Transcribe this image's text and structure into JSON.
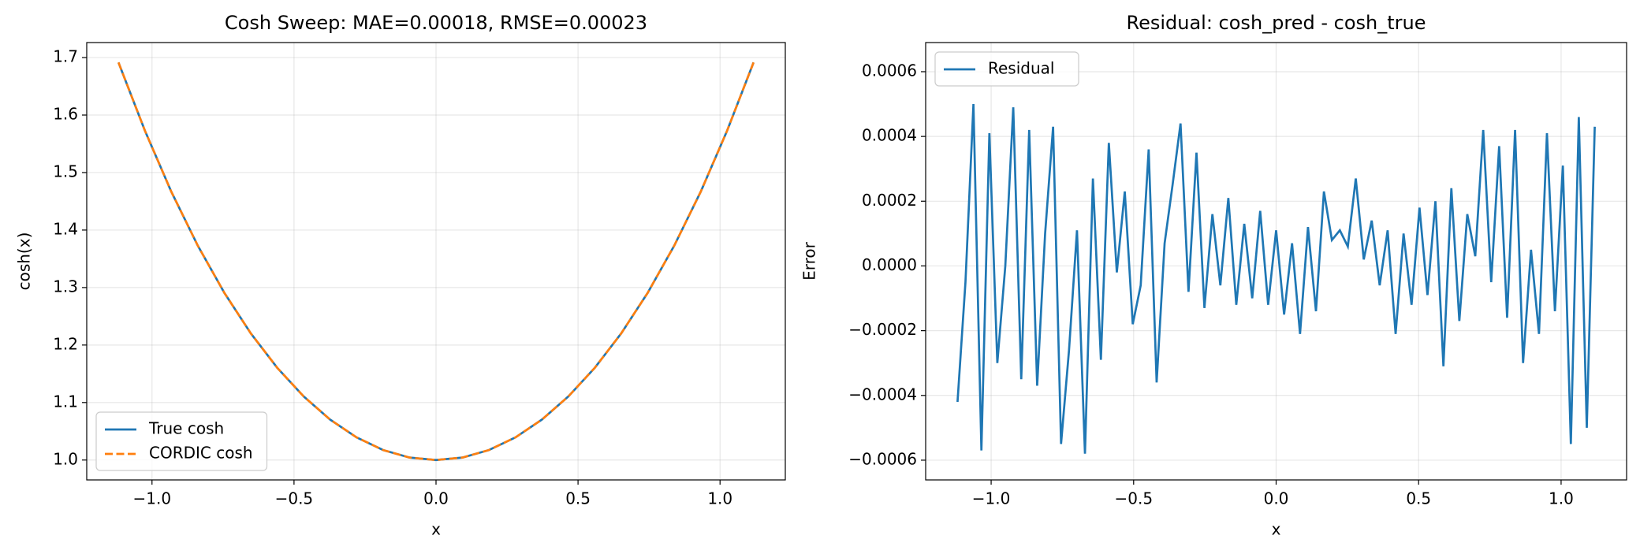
{
  "chart_data": [
    {
      "type": "line",
      "title": "Cosh Sweep: MAE=0.00018, RMSE=0.00023",
      "xlabel": "x",
      "ylabel": "cosh(x)",
      "x": [
        -1.118,
        -1.025,
        -0.932,
        -0.839,
        -0.745,
        -0.652,
        -0.559,
        -0.466,
        -0.373,
        -0.28,
        -0.186,
        -0.093,
        0,
        0.093,
        0.186,
        0.28,
        0.373,
        0.466,
        0.559,
        0.652,
        0.745,
        0.839,
        0.932,
        1.025,
        1.118
      ],
      "series": [
        {
          "name": "True cosh",
          "color": "#1f77b4",
          "linestyle": "solid",
          "values": [
            1.6915,
            1.5729,
            1.4667,
            1.3731,
            1.2906,
            1.2202,
            1.1604,
            1.1106,
            1.0704,
            1.0395,
            1.0173,
            1.0043,
            1.0,
            1.0043,
            1.0173,
            1.0395,
            1.0704,
            1.1106,
            1.1604,
            1.2202,
            1.2906,
            1.3731,
            1.4667,
            1.5729,
            1.6915
          ]
        },
        {
          "name": "CORDIC cosh",
          "color": "#ff7f0e",
          "linestyle": "dashed",
          "values": [
            1.6915,
            1.5729,
            1.4667,
            1.3731,
            1.2906,
            1.2202,
            1.1604,
            1.1106,
            1.0704,
            1.0395,
            1.0173,
            1.0043,
            1.0,
            1.0043,
            1.0173,
            1.0395,
            1.0704,
            1.1106,
            1.1604,
            1.2202,
            1.2906,
            1.3731,
            1.4667,
            1.5729,
            1.6915
          ]
        }
      ],
      "xlim": [
        -1.2298,
        1.2298
      ],
      "ylim": [
        0.9654,
        1.7261
      ],
      "xticks": [
        {
          "value": -1.0,
          "label": "−1.0"
        },
        {
          "value": -0.5,
          "label": "−0.5"
        },
        {
          "value": 0.0,
          "label": "0.0"
        },
        0.5,
        {
          "value": 1.0,
          "label": "1.0"
        }
      ],
      "yticks": [
        {
          "value": 1.0,
          "label": "1.0"
        },
        1.1,
        1.2,
        1.3,
        1.4,
        1.5,
        1.6,
        1.7
      ],
      "grid": true,
      "legend": "lower left"
    },
    {
      "type": "line",
      "title": "Residual: cosh_pred - cosh_true",
      "xlabel": "x",
      "ylabel": "Error",
      "x": [
        -1.118,
        -1.0901,
        -1.0621,
        -1.0342,
        -1.0062,
        -0.9783,
        -0.9503,
        -0.9224,
        -0.8944,
        -0.8665,
        -0.8385,
        -0.8106,
        -0.7826,
        -0.7547,
        -0.7267,
        -0.6988,
        -0.6708,
        -0.6429,
        -0.6149,
        -0.587,
        -0.559,
        -0.5311,
        -0.5031,
        -0.4752,
        -0.4472,
        -0.4193,
        -0.3913,
        -0.3634,
        -0.3354,
        -0.3075,
        -0.2795,
        -0.2516,
        -0.2236,
        -0.1957,
        -0.1677,
        -0.1398,
        -0.1118,
        -0.0839,
        -0.0559,
        -0.028,
        0,
        0.028,
        0.0559,
        0.0839,
        0.1118,
        0.1398,
        0.1677,
        0.1957,
        0.2236,
        0.2516,
        0.2795,
        0.3075,
        0.3354,
        0.3634,
        0.3913,
        0.4193,
        0.4472,
        0.4752,
        0.5031,
        0.5311,
        0.559,
        0.587,
        0.6149,
        0.6429,
        0.6708,
        0.6988,
        0.7267,
        0.7547,
        0.7826,
        0.8106,
        0.8385,
        0.8665,
        0.8944,
        0.9224,
        0.9503,
        0.9783,
        1.0062,
        1.0342,
        1.0621,
        1.0901,
        1.118
      ],
      "series": [
        {
          "name": "Residual",
          "color": "#1f77b4",
          "linestyle": "solid",
          "values": [
            -0.00042,
            -5e-05,
            0.0005,
            -0.00057,
            0.00041,
            -0.0003,
            0,
            0.00049,
            -0.00035,
            0.00042,
            -0.00037,
            0.0001,
            0.00043,
            -0.00055,
            -0.00026,
            0.00011,
            -0.00058,
            0.00027,
            -0.00029,
            0.00038,
            -2e-05,
            0.00023,
            -0.00018,
            -6e-05,
            0.00036,
            -0.00036,
            7e-05,
            0.00025,
            0.00044,
            -8e-05,
            0.00035,
            -0.00013,
            0.00016,
            -6e-05,
            0.00021,
            -0.00012,
            0.00013,
            -0.0001,
            0.00017,
            -0.00012,
            0.00011,
            -0.00015,
            7e-05,
            -0.00021,
            0.00012,
            -0.00014,
            0.00023,
            8e-05,
            0.00011,
            6e-05,
            0.00027,
            2e-05,
            0.00014,
            -6e-05,
            0.00011,
            -0.00021,
            0.0001,
            -0.00012,
            0.00018,
            -9e-05,
            0.0002,
            -0.00031,
            0.00024,
            -0.00017,
            0.00016,
            3e-05,
            0.00042,
            -5e-05,
            0.00037,
            -0.00016,
            0.00042,
            -0.0003,
            5e-05,
            -0.00021,
            0.00041,
            -0.00014,
            0.00031,
            -0.00055,
            0.00046,
            -0.0005,
            0.00043
          ]
        }
      ],
      "xlim": [
        -1.2298,
        1.2298
      ],
      "ylim": [
        -0.000661,
        0.00069
      ],
      "xticks": [
        {
          "value": -1.0,
          "label": "−1.0"
        },
        {
          "value": -0.5,
          "label": "−0.5"
        },
        {
          "value": 0.0,
          "label": "0.0"
        },
        0.5,
        {
          "value": 1.0,
          "label": "1.0"
        }
      ],
      "yticks": [
        {
          "value": -0.0006,
          "label": "−0.0006"
        },
        {
          "value": -0.0004,
          "label": "−0.0004"
        },
        {
          "value": -0.0002,
          "label": "−0.0002"
        },
        {
          "value": 0.0,
          "label": "0.0000"
        },
        0.0002,
        0.0004,
        0.0006
      ],
      "grid": true,
      "legend": "upper left"
    }
  ]
}
